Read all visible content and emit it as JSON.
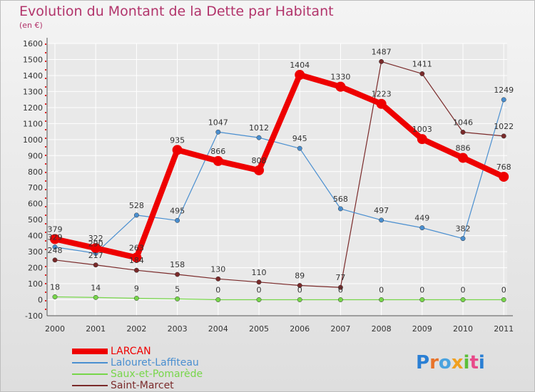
{
  "header": {
    "title": "Evolution du Montant de la Dette par Habitant",
    "subtitle": "(en €)"
  },
  "logo": {
    "text": "Proxiti"
  },
  "colors": {
    "title": "#b2346b",
    "LARCAN": "#ee0000",
    "Lalouret-Laffiteau": "#4a8fd0",
    "Saux-et-Pomarède": "#77d64a",
    "Saint-Marcet": "#7a2a2a",
    "grid": "#ffffff",
    "axis": "#555555"
  },
  "chart_data": {
    "type": "line",
    "title": "Evolution du Montant de la Dette par Habitant",
    "subtitle": "(en €)",
    "xlabel": "",
    "ylabel": "",
    "x": [
      "2000",
      "2001",
      "2002",
      "2003",
      "2004",
      "2005",
      "2006",
      "2007",
      "2008",
      "2009",
      "2010",
      "2011"
    ],
    "ylim": [
      -100,
      1600
    ],
    "yticks": [
      -100,
      0,
      100,
      200,
      300,
      400,
      500,
      600,
      700,
      800,
      900,
      1000,
      1100,
      1200,
      1300,
      1400,
      1500,
      1600
    ],
    "grid": true,
    "legend_position": "bottom-left",
    "series": [
      {
        "name": "LARCAN",
        "values": [
          379,
          322,
          263,
          935,
          866,
          808,
          1404,
          1330,
          1223,
          1003,
          886,
          768
        ],
        "labels": [
          "379",
          "322",
          "263",
          "935",
          "866",
          "808",
          "1404",
          "1330",
          "1223",
          "1003",
          "886",
          "768"
        ]
      },
      {
        "name": "Lalouret-Laffiteau",
        "values": [
          329,
          290,
          528,
          495,
          1047,
          1012,
          945,
          568,
          497,
          449,
          382,
          1249
        ],
        "labels": [
          "329",
          "290",
          "528",
          "495",
          "1047",
          "1012",
          "945",
          "568",
          "497",
          "449",
          "382",
          "1249"
        ]
      },
      {
        "name": "Saux-et-Pomarède",
        "values": [
          18,
          14,
          9,
          5,
          0,
          0,
          0,
          0,
          0,
          0,
          0,
          0
        ],
        "labels": [
          "18",
          "14",
          "9",
          "5",
          "0",
          "0",
          "0",
          "0",
          "0",
          "0",
          "0",
          "0"
        ]
      },
      {
        "name": "Saint-Marcet",
        "values": [
          248,
          217,
          184,
          158,
          130,
          110,
          89,
          77,
          1487,
          1411,
          1046,
          1022
        ],
        "labels": [
          "248",
          "217",
          "184",
          "158",
          "130",
          "110",
          "89",
          "77",
          "1487",
          "1411",
          "1046",
          "1022"
        ]
      }
    ]
  }
}
